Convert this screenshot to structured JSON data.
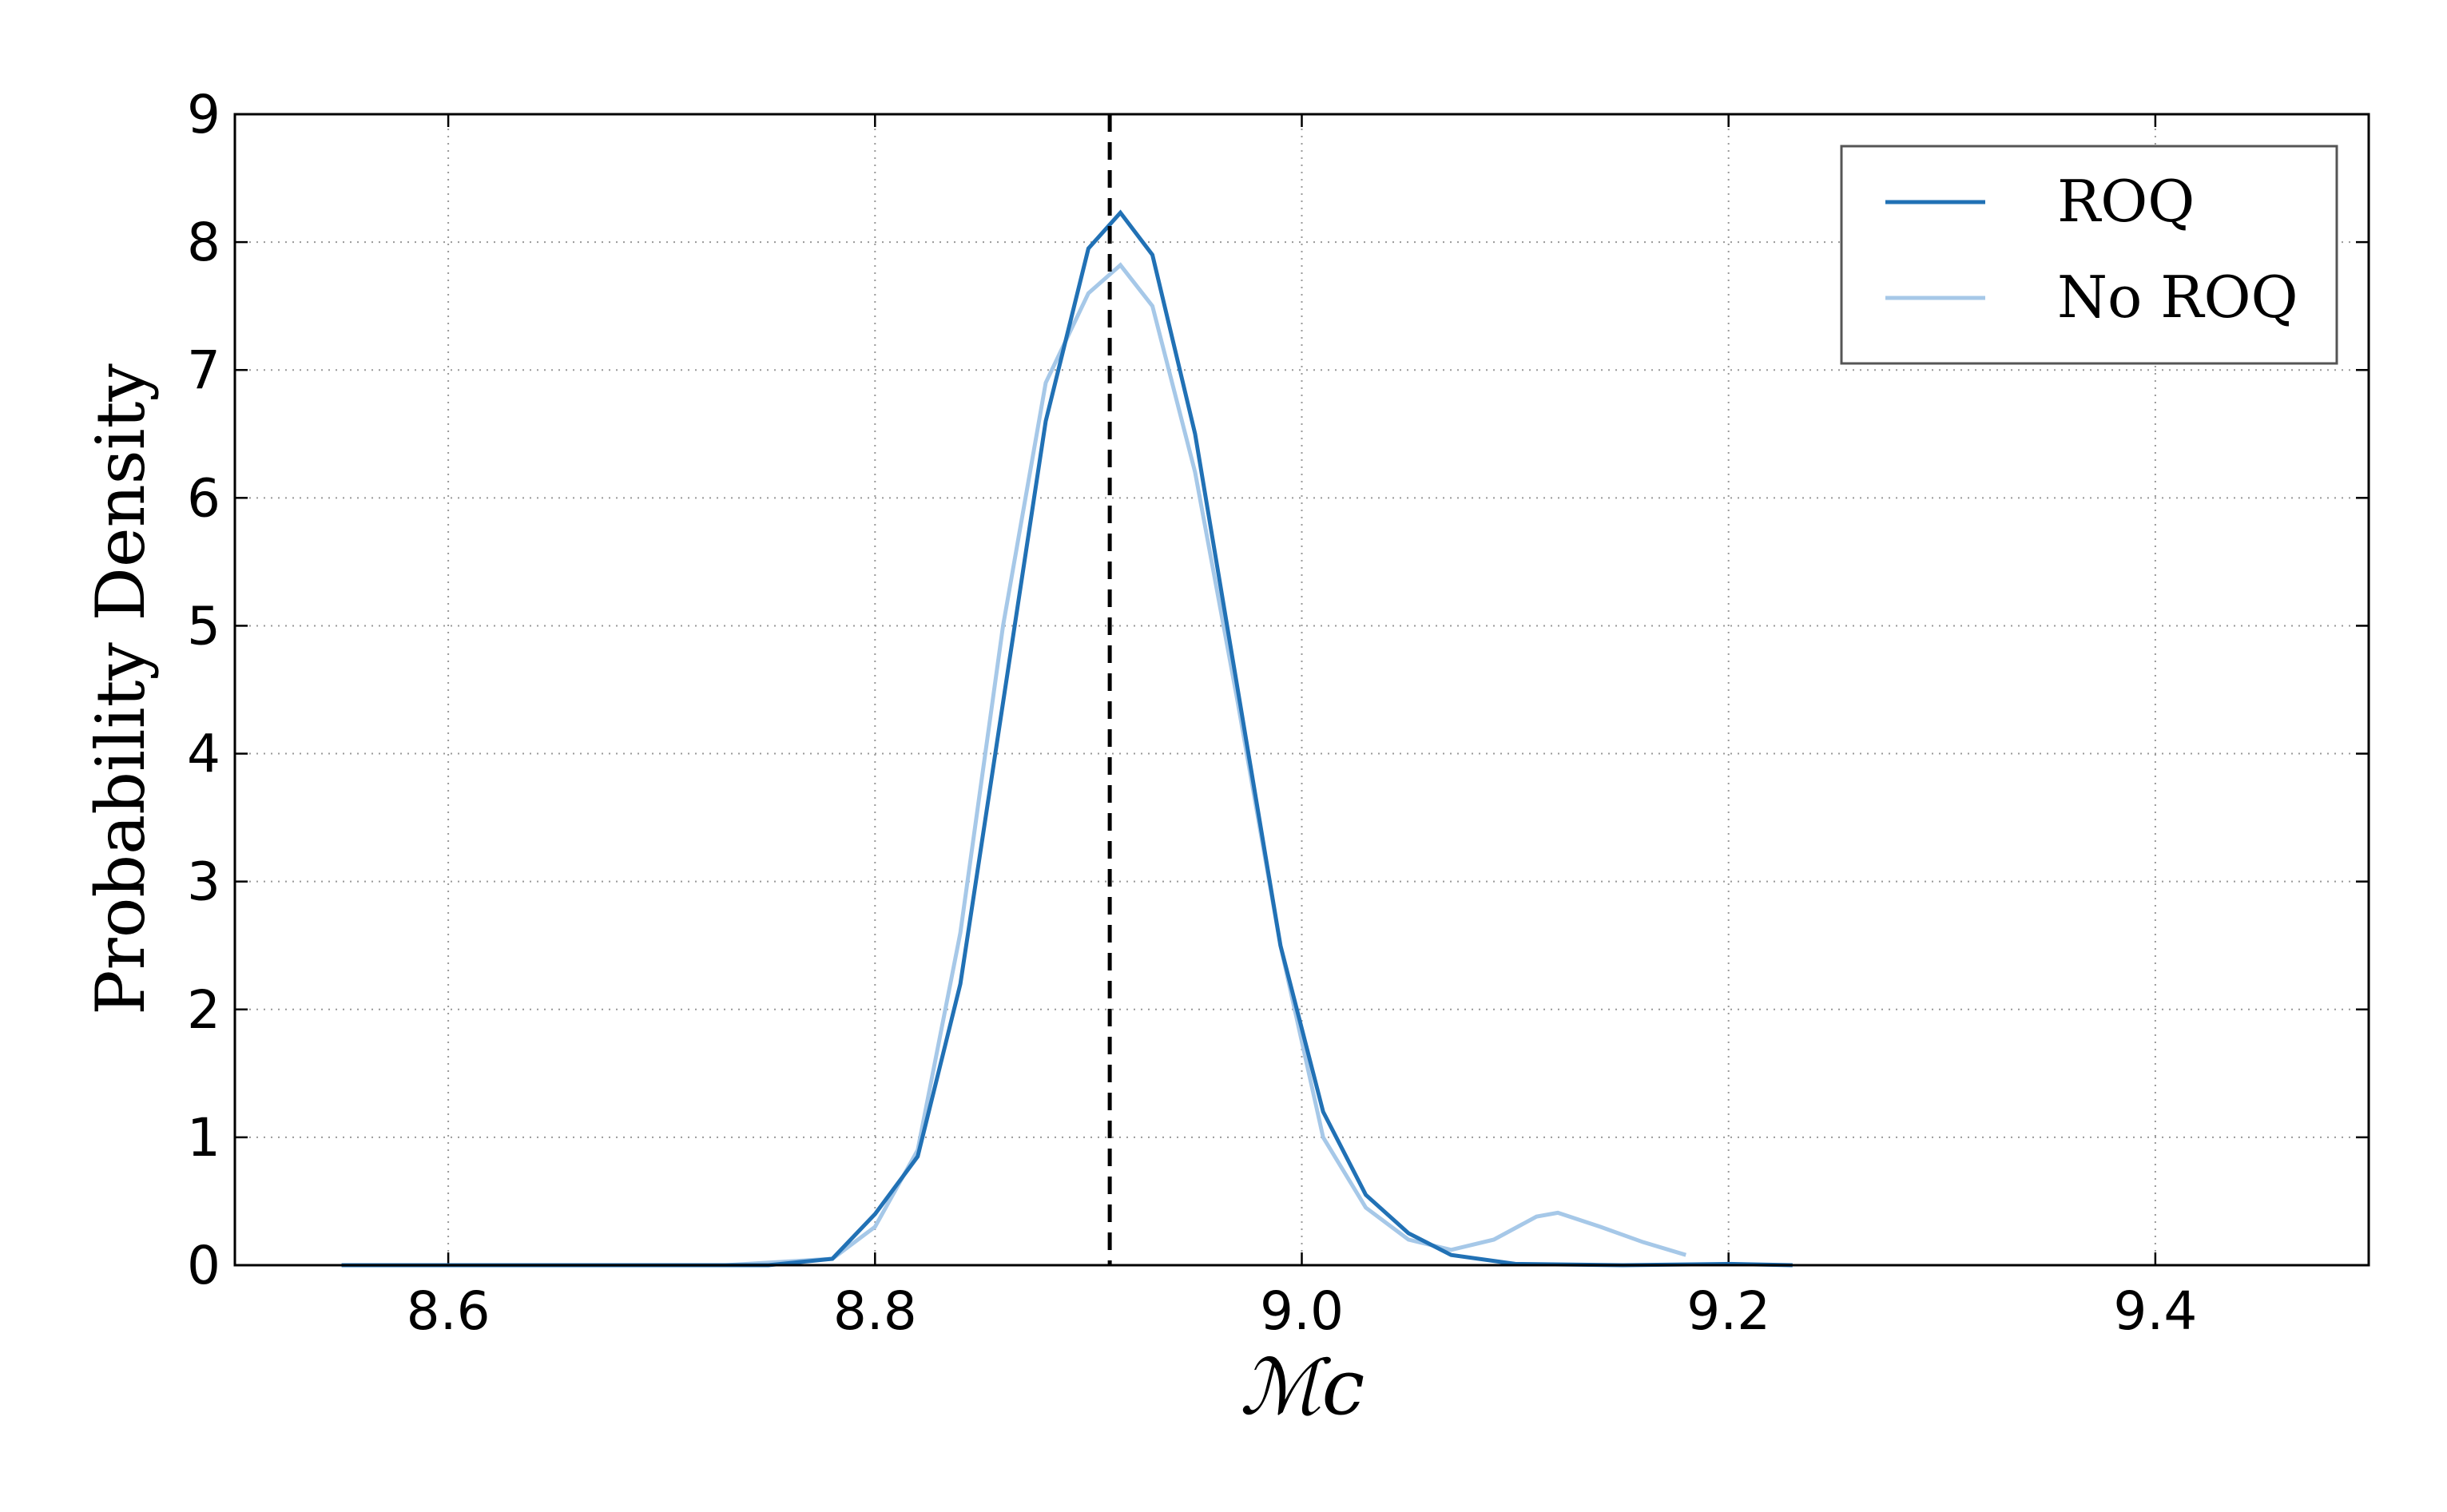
{
  "chart_data": {
    "type": "line",
    "xlabel": "ℳc",
    "ylabel": "Probability Density",
    "xlim": [
      8.5,
      9.5
    ],
    "ylim": [
      0,
      9
    ],
    "xticks": [
      8.6,
      8.8,
      {
        "value": 9,
        "label": "9.0"
      },
      9.2,
      9.4
    ],
    "yticks": [
      0,
      1,
      2,
      3,
      4,
      5,
      6,
      7,
      8,
      9
    ],
    "grid": true,
    "legend": "upper right",
    "vline": 8.91,
    "series": [
      {
        "name": "ROQ",
        "color": "#2171b5",
        "x": [
          8.55,
          8.75,
          8.78,
          8.8,
          8.82,
          8.84,
          8.86,
          8.88,
          8.9,
          8.915,
          8.93,
          8.95,
          8.97,
          8.99,
          9.01,
          9.03,
          9.05,
          9.07,
          9.1,
          9.15,
          9.2,
          9.23
        ],
        "values": [
          0,
          0,
          0.05,
          0.4,
          0.85,
          2.2,
          4.4,
          6.6,
          7.95,
          8.23,
          7.9,
          6.5,
          4.5,
          2.5,
          1.2,
          0.55,
          0.25,
          0.08,
          0.01,
          0,
          0.01,
          0
        ]
      },
      {
        "name": "No ROQ",
        "color": "#a6c8e8",
        "x": [
          8.73,
          8.78,
          8.8,
          8.82,
          8.84,
          8.86,
          8.88,
          8.9,
          8.915,
          8.93,
          8.95,
          8.97,
          8.99,
          9.01,
          9.03,
          9.05,
          9.07,
          9.09,
          9.11,
          9.12,
          9.14,
          9.16,
          9.18
        ],
        "values": [
          0,
          0.05,
          0.3,
          0.9,
          2.6,
          5.0,
          6.9,
          7.6,
          7.82,
          7.5,
          6.2,
          4.4,
          2.5,
          1.0,
          0.45,
          0.2,
          0.12,
          0.2,
          0.38,
          0.41,
          0.3,
          0.18,
          0.08
        ]
      }
    ]
  }
}
